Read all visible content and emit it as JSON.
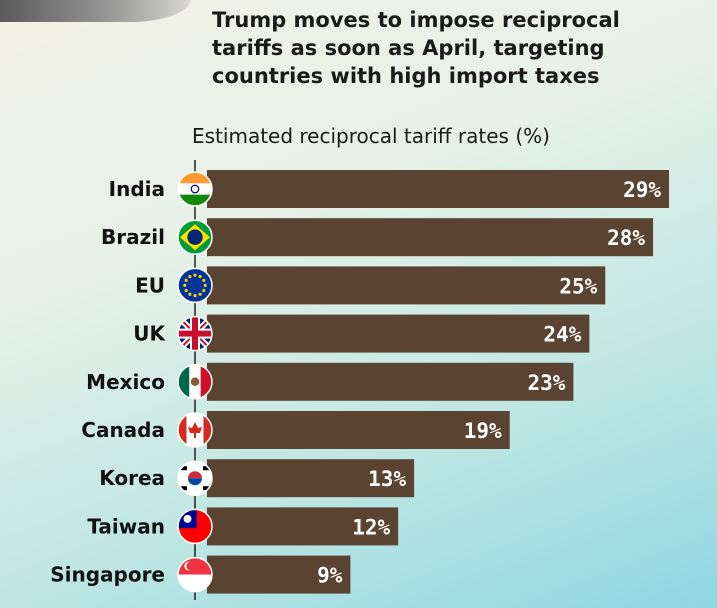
{
  "headline": "Trump moves to impose reciprocal tariffs as soon as April, targeting countries with high import taxes",
  "colors": {
    "bar": "#5a4330",
    "value_text": "#ffffff",
    "axis": "#222222"
  },
  "chart_data": {
    "type": "bar",
    "orientation": "horizontal",
    "title": "Estimated reciprocal tariff rates (%)",
    "categories": [
      "India",
      "Brazil",
      "EU",
      "UK",
      "Mexico",
      "Canada",
      "Korea",
      "Taiwan",
      "Singapore"
    ],
    "values": [
      29,
      28,
      25,
      24,
      23,
      19,
      13,
      12,
      9
    ],
    "value_labels": [
      "29%",
      "28%",
      "25%",
      "24%",
      "23%",
      "19%",
      "13%",
      "12%",
      "9%"
    ],
    "flags": [
      "india-flag-icon",
      "brazil-flag-icon",
      "eu-flag-icon",
      "uk-flag-icon",
      "mexico-flag-icon",
      "canada-flag-icon",
      "korea-flag-icon",
      "taiwan-flag-icon",
      "singapore-flag-icon"
    ],
    "xlim": [
      0,
      29
    ],
    "xlabel": "",
    "ylabel": ""
  }
}
